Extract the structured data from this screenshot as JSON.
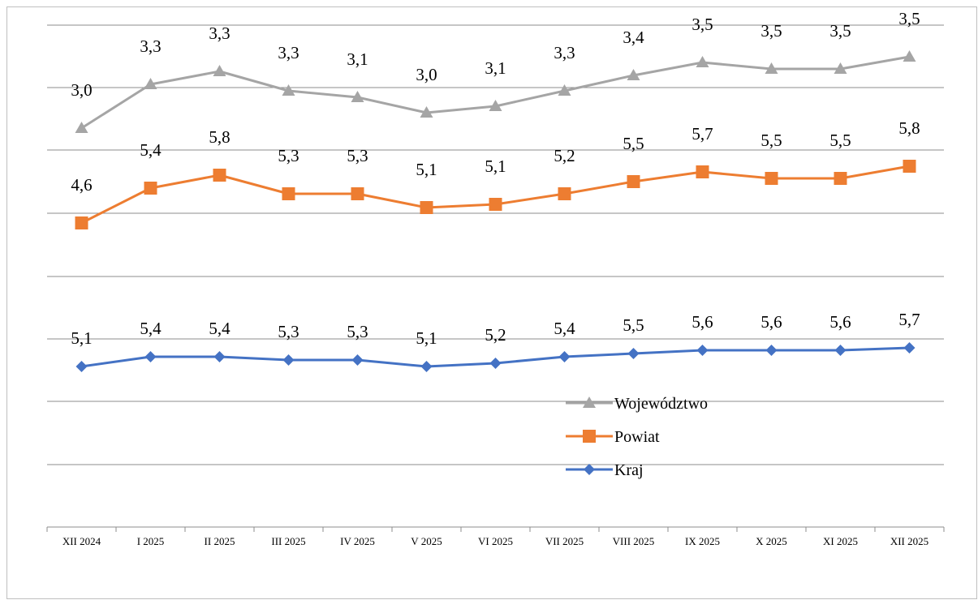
{
  "chart_data": {
    "type": "line",
    "categories": [
      "XII 2024",
      "I 2025",
      "II 2025",
      "III 2025",
      "IV 2025",
      "V 2025",
      "VI 2025",
      "VII 2025",
      "VIII 2025",
      "IX 2025",
      "X 2025",
      "XI 2025",
      "XII 2025"
    ],
    "series": [
      {
        "name": "Województwo",
        "marker": "triangle",
        "color": "#a5a5a5",
        "values": [
          3.0,
          3.3,
          3.3,
          3.3,
          3.1,
          3.0,
          3.1,
          3.3,
          3.4,
          3.5,
          3.5,
          3.5,
          3.5
        ],
        "labels": [
          "3,0",
          "3,3",
          "3,3",
          "3,3",
          "3,1",
          "3,0",
          "3,1",
          "3,3",
          "3,4",
          "3,5",
          "3,5",
          "3,5",
          "3,5"
        ]
      },
      {
        "name": "Powiat",
        "marker": "square",
        "color": "#ed7d31",
        "values": [
          4.6,
          5.4,
          5.8,
          5.3,
          5.3,
          5.1,
          5.1,
          5.2,
          5.5,
          5.7,
          5.5,
          5.5,
          5.8
        ],
        "labels": [
          "4,6",
          "5,4",
          "5,8",
          "5,3",
          "5,3",
          "5,1",
          "5,1",
          "5,2",
          "5,5",
          "5,7",
          "5,5",
          "5,5",
          "5,8"
        ]
      },
      {
        "name": "Kraj",
        "marker": "diamond",
        "color": "#4472c4",
        "values": [
          5.1,
          5.4,
          5.4,
          5.3,
          5.3,
          5.1,
          5.2,
          5.4,
          5.5,
          5.6,
          5.6,
          5.6,
          5.7
        ],
        "labels": [
          "5,1",
          "5,4",
          "5,4",
          "5,3",
          "5,3",
          "5,1",
          "5,2",
          "5,4",
          "5,5",
          "5,6",
          "5,6",
          "5,6",
          "5,7"
        ]
      }
    ],
    "grid": true,
    "legend_position": "bottom-right-inside",
    "y_axis_labels_shown": false
  }
}
